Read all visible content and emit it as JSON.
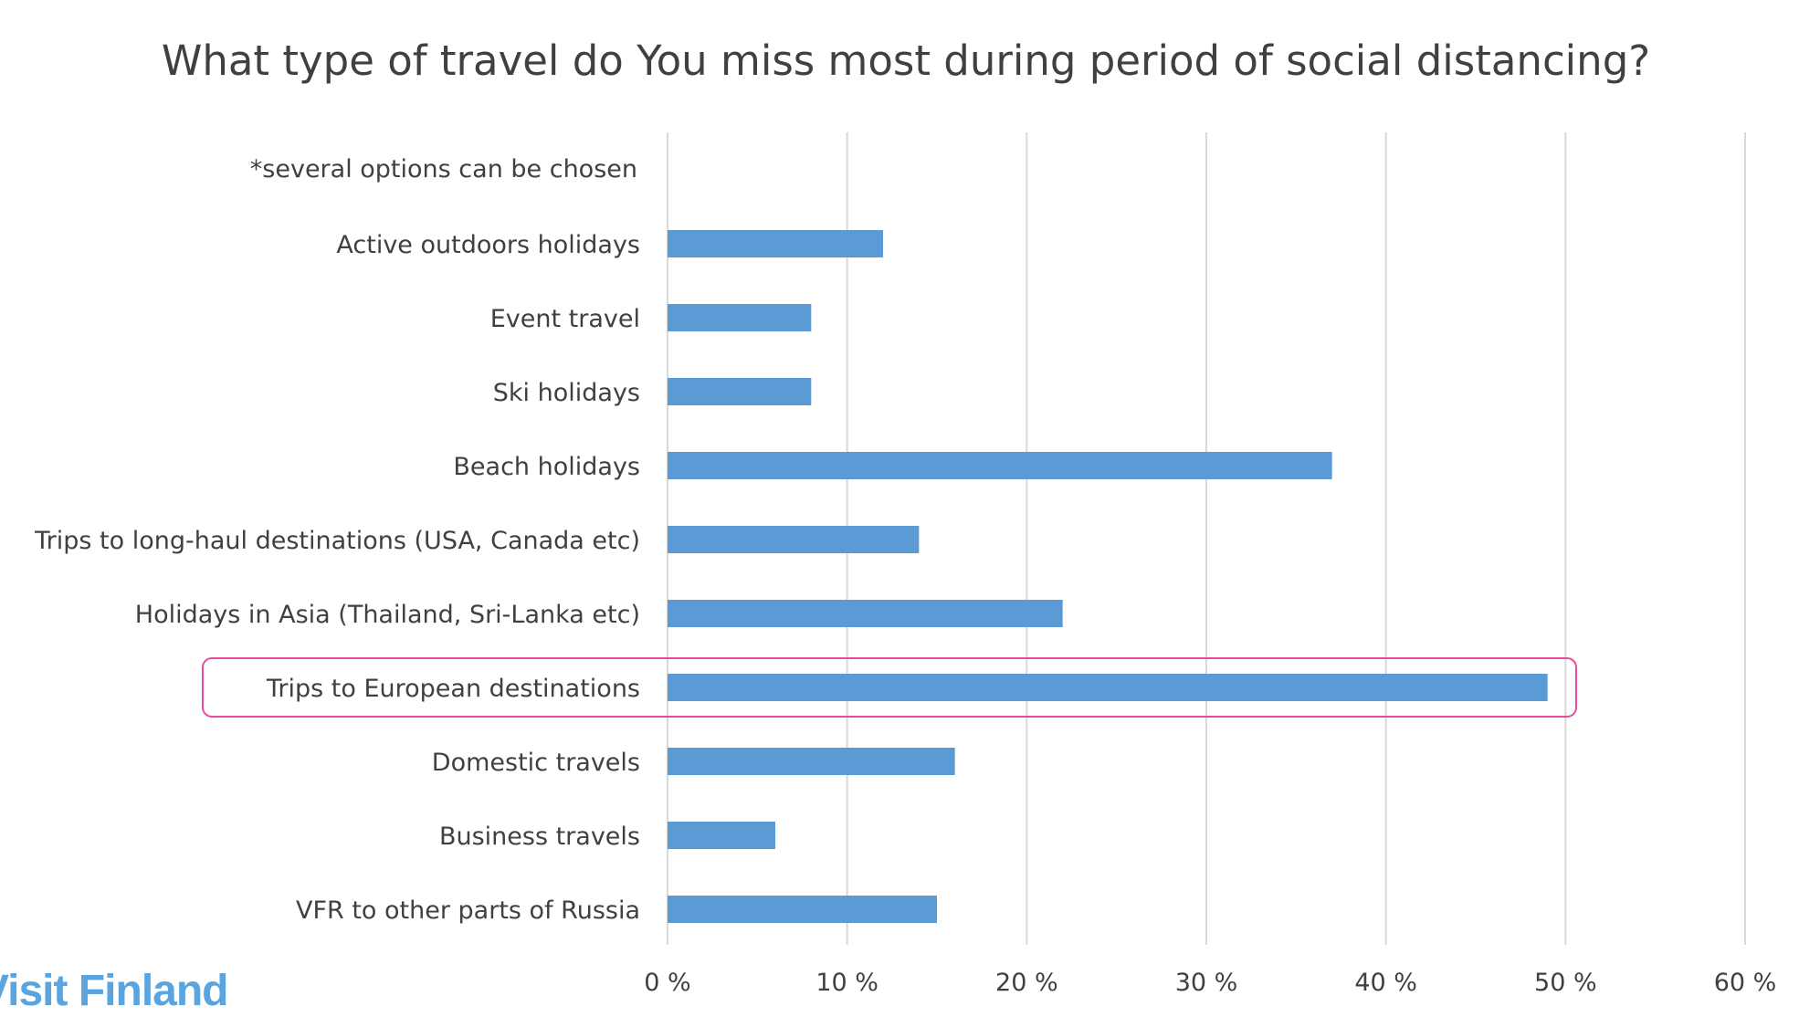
{
  "chart_data": {
    "type": "bar",
    "orientation": "horizontal",
    "title": "What type of travel do You miss most during period of social distancing?",
    "note": "*several options can be chosen",
    "categories": [
      "Active outdoors holidays",
      "Event travel",
      "Ski holidays",
      "Beach holidays",
      "Trips to long-haul destinations (USA, Canada etc)",
      "Holidays in Asia (Thailand, Sri-Lanka etc)",
      "Trips to European destinations",
      "Domestic travels",
      "Business travels",
      "VFR to other parts of Russia"
    ],
    "values": [
      12,
      8,
      8,
      37,
      14,
      22,
      49,
      16,
      6,
      15
    ],
    "unit": "%",
    "xlim": [
      0,
      60
    ],
    "xticks": [
      "0 %",
      "10 %",
      "20 %",
      "30 %",
      "40 %",
      "50 %",
      "60 %"
    ],
    "grid": true,
    "highlighted_category": "Trips to European destinations",
    "bar_color": "#5b9bd5",
    "highlight_color": "#e84b9a",
    "gridline_color": "#d9d9d9"
  },
  "brand": {
    "logo_text": "Visit Finland",
    "logo_color": "#5aa5df"
  }
}
